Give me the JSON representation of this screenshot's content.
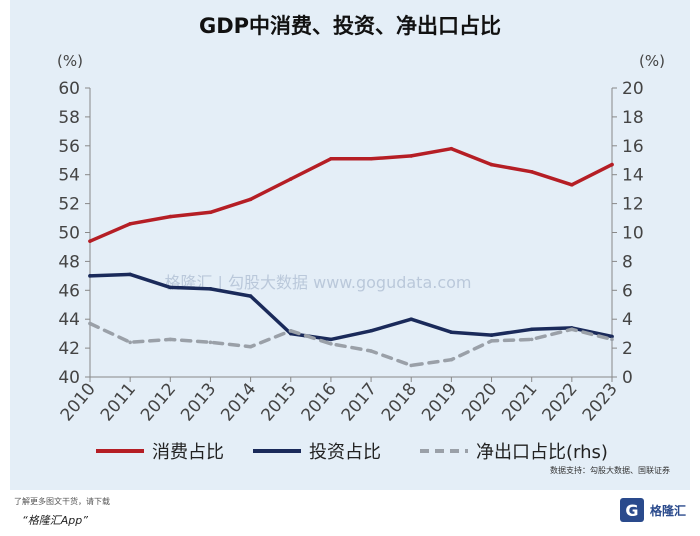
{
  "chart_data": {
    "type": "line",
    "title": "GDP中消费、投资、净出口占比",
    "categories": [
      "2010",
      "2011",
      "2012",
      "2013",
      "2014",
      "2015",
      "2016",
      "2017",
      "2018",
      "2019",
      "2020",
      "2021",
      "2022",
      "2023"
    ],
    "left_axis": {
      "unit": "(%)",
      "ylim": [
        40,
        60
      ],
      "ticks": [
        40,
        42,
        44,
        46,
        48,
        50,
        52,
        54,
        56,
        58,
        60
      ]
    },
    "right_axis": {
      "unit": "(%)",
      "ylim": [
        0,
        20
      ],
      "ticks": [
        0,
        2,
        4,
        6,
        8,
        10,
        12,
        14,
        16,
        18,
        20
      ]
    },
    "series": [
      {
        "name": "消费占比",
        "axis": "left",
        "color": "#b51e25",
        "style": "solid",
        "values": [
          49.4,
          50.6,
          51.1,
          51.4,
          52.3,
          53.7,
          55.1,
          55.1,
          55.3,
          55.8,
          54.7,
          54.2,
          53.3,
          54.7
        ]
      },
      {
        "name": "投资占比",
        "axis": "left",
        "color": "#1a2a5a",
        "style": "solid",
        "values": [
          47.0,
          47.1,
          46.2,
          46.1,
          45.6,
          43.0,
          42.6,
          43.2,
          44.0,
          43.1,
          42.9,
          43.3,
          43.4,
          42.8
        ]
      },
      {
        "name": "净出口占比(rhs)",
        "axis": "right",
        "color": "#9aa0a8",
        "style": "dashed",
        "values": [
          3.7,
          2.4,
          2.6,
          2.4,
          2.1,
          3.2,
          2.3,
          1.8,
          0.8,
          1.2,
          2.5,
          2.6,
          3.3,
          2.6
        ]
      }
    ],
    "legend_position": "bottom",
    "grid": false
  },
  "watermark": "格隆汇 | 勾股大数据 www.gogudata.com",
  "source_note": "数据支持：勾股大数据、国联证券",
  "footer": {
    "line1": "了解更多图文干货，请下载",
    "line2": "“格隆汇App”",
    "brand_glyph": "G",
    "brand_text": "格隆汇"
  },
  "colors": {
    "panel_bg": "#e4eef7",
    "axis": "#888888"
  }
}
